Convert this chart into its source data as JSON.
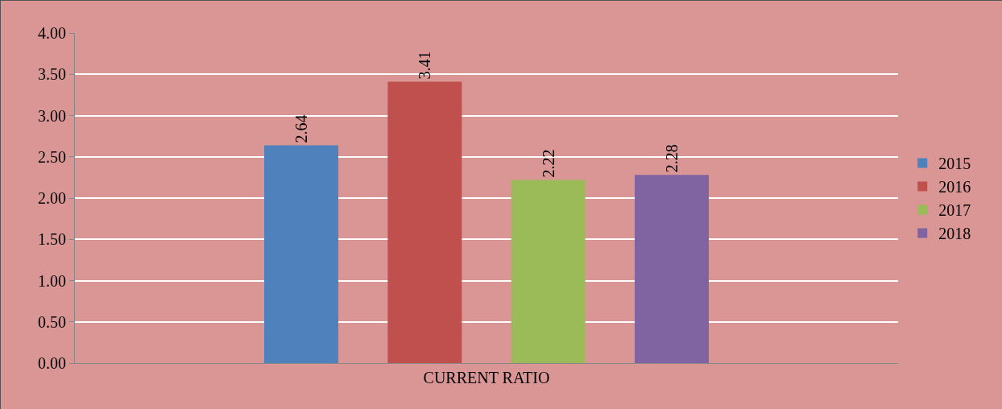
{
  "chart_data": {
    "type": "bar",
    "categories": [
      "CURRENT RATIO"
    ],
    "series": [
      {
        "name": "2015",
        "color": "#4f81bd",
        "values": [
          2.64
        ]
      },
      {
        "name": "2016",
        "color": "#c0504d",
        "values": [
          3.41
        ]
      },
      {
        "name": "2017",
        "color": "#9bbb59",
        "values": [
          2.22
        ]
      },
      {
        "name": "2018",
        "color": "#8064a2",
        "values": [
          2.28
        ]
      }
    ],
    "ylim": [
      0,
      4
    ],
    "yticks": [
      {
        "value": 0,
        "label": "0.00"
      },
      {
        "value": 0.5,
        "label": "0.50"
      },
      {
        "value": 1,
        "label": "1.00"
      },
      {
        "value": 1.5,
        "label": "1.50"
      },
      {
        "value": 2,
        "label": "2.00"
      },
      {
        "value": 2.5,
        "label": "2.50"
      },
      {
        "value": 3,
        "label": "3.00"
      },
      {
        "value": 3.5,
        "label": "3.50"
      },
      {
        "value": 4,
        "label": "4.00"
      }
    ],
    "grid": "y",
    "legend": "right",
    "data_labels": true
  }
}
